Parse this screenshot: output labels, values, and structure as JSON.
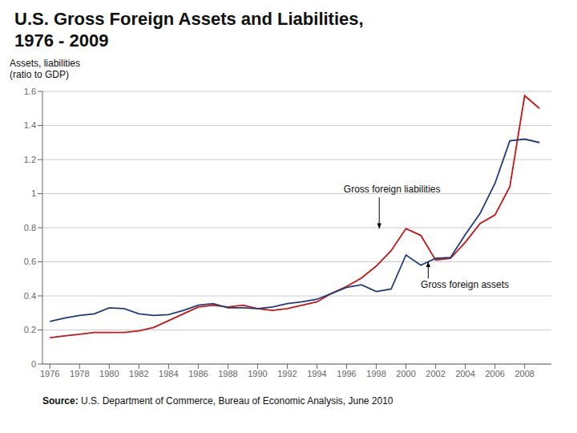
{
  "chart_data": {
    "type": "line",
    "title": "U.S. Gross Foreign Assets and Liabilities,\n1976 - 2009",
    "ylabel": "Assets, liabilities\n(ratio to GDP)",
    "source": "Source: U.S. Department of Commerce, Bureau of Economic Analysis, June 2010",
    "x": [
      1976,
      1977,
      1978,
      1979,
      1980,
      1981,
      1982,
      1983,
      1984,
      1985,
      1986,
      1987,
      1988,
      1989,
      1990,
      1991,
      1992,
      1993,
      1994,
      1995,
      1996,
      1997,
      1998,
      1999,
      2000,
      2001,
      2002,
      2003,
      2004,
      2005,
      2006,
      2007,
      2008,
      2009
    ],
    "xlim": [
      1975.5,
      2009.8
    ],
    "xticks": [
      1976,
      1978,
      1980,
      1982,
      1984,
      1986,
      1988,
      1990,
      1992,
      1994,
      1996,
      1998,
      2000,
      2002,
      2004,
      2006,
      2008
    ],
    "ylim": [
      0,
      1.6
    ],
    "yticks": [
      0,
      0.2,
      0.4,
      0.6,
      0.8,
      1.0,
      1.2,
      1.4,
      1.6
    ],
    "grid": true,
    "series": [
      {
        "color": "#c81414",
        "values": [
          0.155,
          0.165,
          0.175,
          0.185,
          0.185,
          0.185,
          0.195,
          0.215,
          0.255,
          0.295,
          0.335,
          0.345,
          0.335,
          0.345,
          0.325,
          0.315,
          0.325,
          0.345,
          0.365,
          0.415,
          0.455,
          0.505,
          0.575,
          0.665,
          0.795,
          0.755,
          0.61,
          0.62,
          0.715,
          0.825,
          0.875,
          1.04,
          1.575,
          1.5
        ]
      },
      {
        "color": "#1f3d7a",
        "values": [
          0.25,
          0.27,
          0.285,
          0.295,
          0.33,
          0.325,
          0.295,
          0.285,
          0.29,
          0.315,
          0.345,
          0.355,
          0.33,
          0.33,
          0.325,
          0.335,
          0.355,
          0.365,
          0.38,
          0.415,
          0.45,
          0.465,
          0.425,
          0.44,
          0.64,
          0.58,
          0.62,
          0.625,
          0.76,
          0.885,
          1.06,
          1.31,
          1.32,
          1.3
        ]
      }
    ],
    "annotations": [
      {
        "text": "Gross foreign liabilities",
        "x": 1998.2,
        "y": 0.795,
        "text_x": 1995.8,
        "text_y": 1.02
      },
      {
        "text": "Gross foreign assets",
        "x": 2001.5,
        "y": 0.6,
        "text_x": 2001.0,
        "text_y": 0.46
      }
    ]
  }
}
